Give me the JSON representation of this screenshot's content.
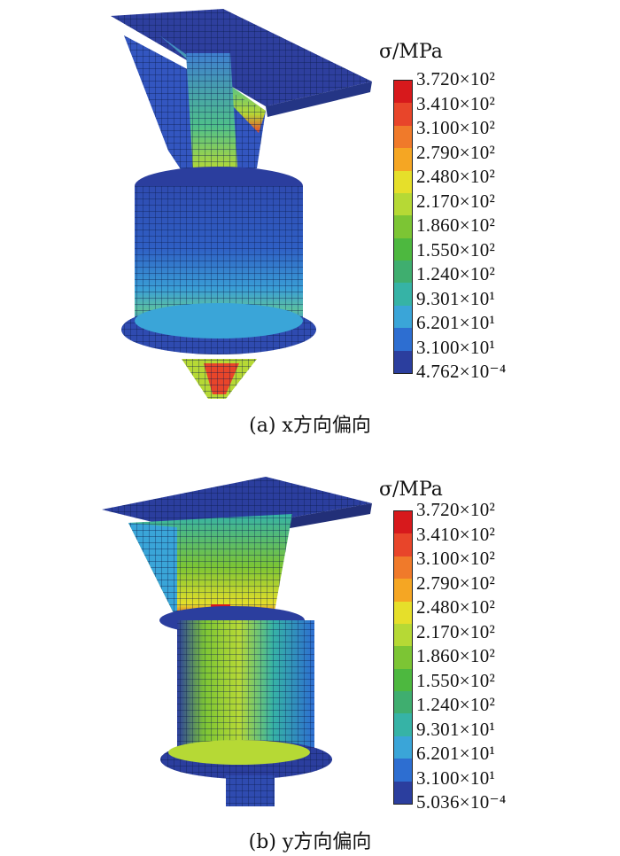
{
  "panels": [
    {
      "id": "a",
      "caption": "(a) x方向偏向",
      "legend_title": "σ/MPa",
      "legend_values": [
        "3.720×10²",
        "3.410×10²",
        "3.100×10²",
        "2.790×10²",
        "2.480×10²",
        "2.170×10²",
        "1.860×10²",
        "1.550×10²",
        "1.240×10²",
        "9.301×10¹",
        "6.201×10¹",
        "3.100×10¹",
        "4.762×10⁻⁴"
      ]
    },
    {
      "id": "b",
      "caption": "(b) y方向偏向",
      "legend_title": "σ/MPa",
      "legend_values": [
        "3.720×10²",
        "3.410×10²",
        "3.100×10²",
        "2.790×10²",
        "2.480×10²",
        "2.170×10²",
        "1.860×10²",
        "1.550×10²",
        "1.240×10²",
        "9.301×10¹",
        "6.201×10¹",
        "3.100×10¹",
        "5.036×10⁻⁴"
      ]
    }
  ],
  "colormap": [
    "#d7191c",
    "#e8452a",
    "#f07a2a",
    "#f5a623",
    "#e6df2a",
    "#b6d935",
    "#7cc534",
    "#4db83f",
    "#3fae6f",
    "#36b3a6",
    "#3aa5d8",
    "#2d6ed1",
    "#2b3e9e"
  ]
}
